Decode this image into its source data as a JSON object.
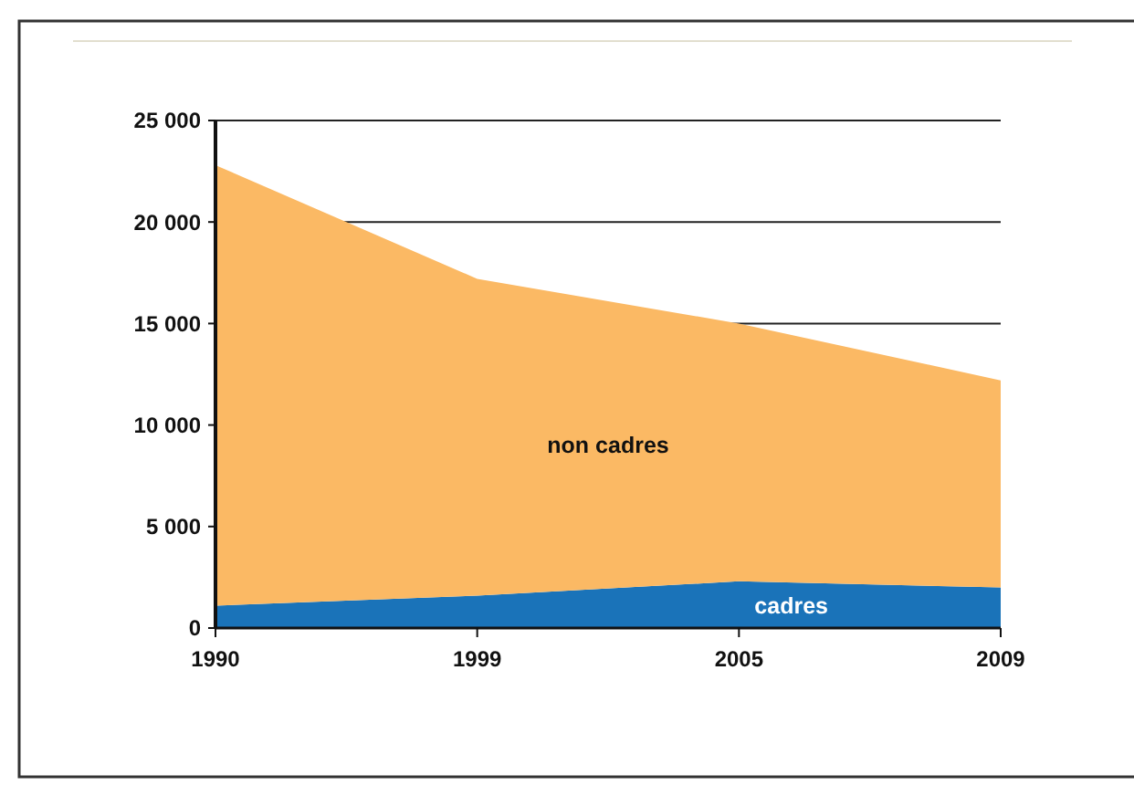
{
  "chart_data": {
    "type": "area",
    "stacked": true,
    "categories": [
      "1990",
      "1999",
      "2005",
      "2009"
    ],
    "series": [
      {
        "name": "cadres",
        "color": "#1a73b9",
        "values": [
          1100,
          1600,
          2300,
          2000
        ]
      },
      {
        "name": "non cadres",
        "color": "#fbb964",
        "values": [
          21700,
          15600,
          12700,
          10200
        ]
      }
    ],
    "ylim": [
      0,
      25000
    ],
    "yticks": [
      0,
      {
        "value": 5000,
        "label": "5 000"
      },
      {
        "value": 10000,
        "label": "10 000"
      },
      {
        "value": 15000,
        "label": "15 000"
      },
      {
        "value": 20000,
        "label": "20 000"
      },
      {
        "value": 25000,
        "label": "25 000"
      }
    ],
    "grid": "y"
  }
}
